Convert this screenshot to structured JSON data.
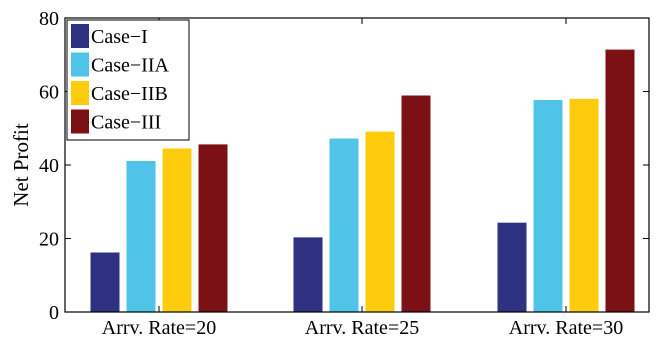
{
  "chart_data": {
    "type": "bar",
    "title": "",
    "xlabel": "",
    "ylabel": "Net Profit",
    "ylim": [
      0,
      80
    ],
    "yticks": [
      0,
      20,
      40,
      60,
      80
    ],
    "grid": false,
    "legend_position": "top-left",
    "categories": [
      "Arrv. Rate=20",
      "Arrv. Rate=25",
      "Arrv. Rate=30"
    ],
    "series": [
      {
        "name": "Case−I",
        "color": "#2E3182",
        "values": [
          16.2,
          20.3,
          24.3
        ]
      },
      {
        "name": "Case−IIA",
        "color": "#4FC3E8",
        "values": [
          41.1,
          47.2,
          57.7
        ]
      },
      {
        "name": "Case−IIB",
        "color": "#FFCC0D",
        "values": [
          44.5,
          49.1,
          58.0
        ]
      },
      {
        "name": "Case−III",
        "color": "#7B1115",
        "values": [
          45.6,
          58.9,
          71.4
        ]
      }
    ]
  }
}
